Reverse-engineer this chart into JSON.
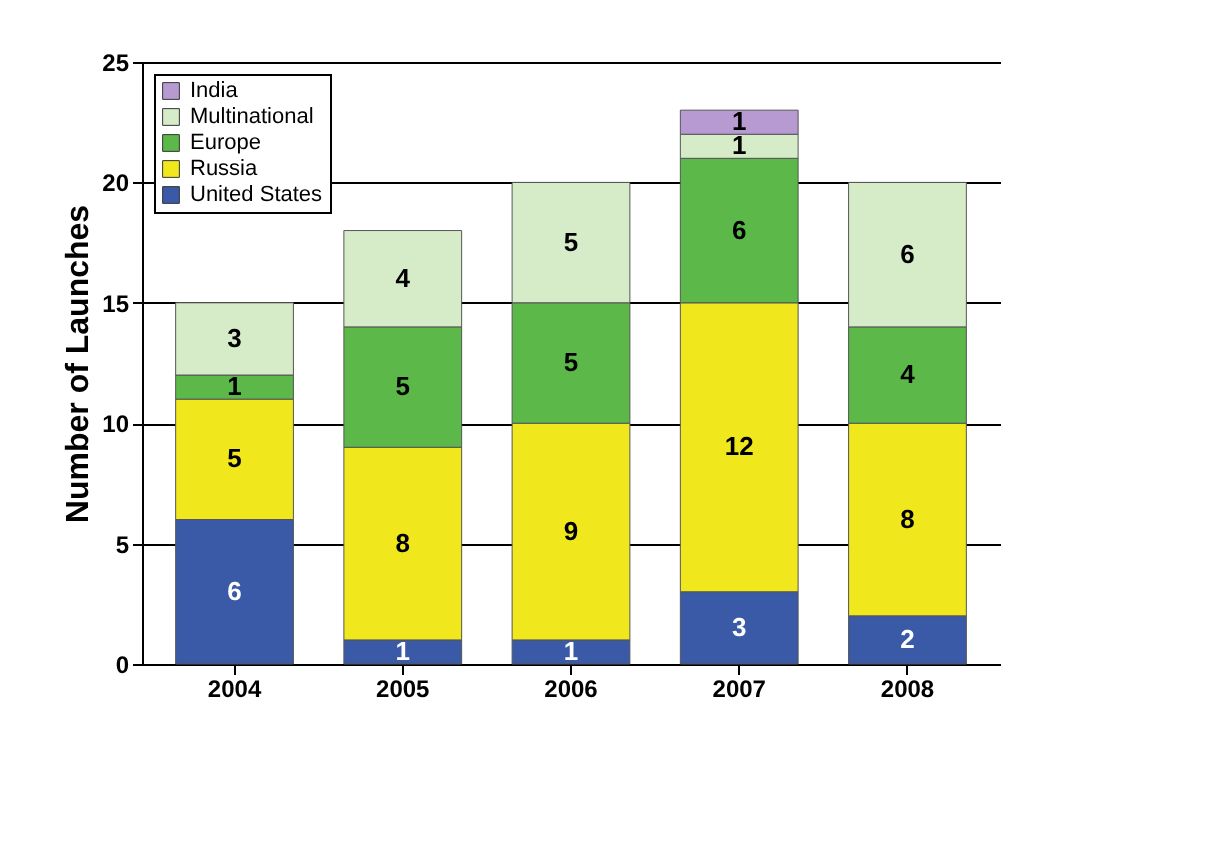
{
  "chart_data": {
    "type": "bar",
    "stacked": true,
    "ylabel": "Number of Launches",
    "categories": [
      "2004",
      "2005",
      "2006",
      "2007",
      "2008"
    ],
    "series": [
      {
        "name": "United States",
        "color": "#3a5aa8",
        "values": [
          6,
          1,
          1,
          3,
          2
        ]
      },
      {
        "name": "Russia",
        "color": "#f0e81c",
        "values": [
          5,
          8,
          9,
          12,
          8
        ]
      },
      {
        "name": "Europe",
        "color": "#5cb848",
        "values": [
          1,
          5,
          5,
          6,
          4
        ]
      },
      {
        "name": "Multinational",
        "color": "#d6ecc8",
        "values": [
          3,
          4,
          5,
          1,
          6
        ]
      },
      {
        "name": "India",
        "color": "#b89ad2",
        "values": [
          null,
          null,
          null,
          1,
          null
        ]
      }
    ],
    "ylim": [
      0,
      25
    ],
    "yticks": [
      0,
      5,
      10,
      15,
      20,
      25
    ],
    "grid": "y",
    "legend": "top left",
    "data_labels": true
  }
}
